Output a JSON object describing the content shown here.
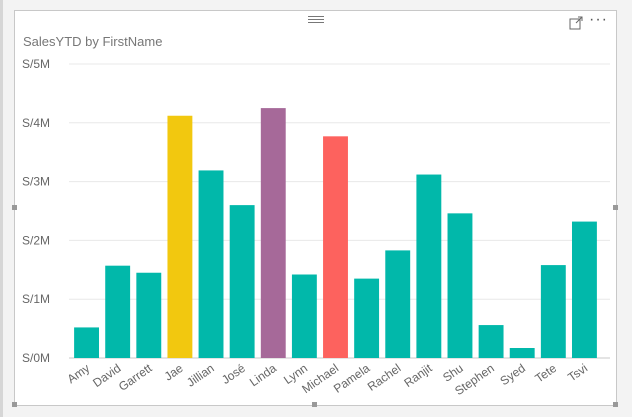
{
  "visual": {
    "title": "SalesYTD by FirstName",
    "focus_icon": "focus-mode-icon",
    "more_icon": "more-options-icon",
    "more_glyph": "···",
    "drag_icon": "drag-handle-icon"
  },
  "colors": {
    "default": "#01B8AA",
    "highlight_yellow": "#F2C80F",
    "highlight_purple": "#A66999",
    "highlight_red": "#FD625E",
    "grid": "#e8e8e8",
    "axis": "#c8c8c8"
  },
  "chart_data": {
    "type": "bar",
    "title": "SalesYTD by FirstName",
    "xlabel": "",
    "ylabel": "",
    "ylim": [
      0,
      5000000
    ],
    "y_ticks": [
      {
        "value": 0,
        "label": "S/0M"
      },
      {
        "value": 1000000,
        "label": "S/1M"
      },
      {
        "value": 2000000,
        "label": "S/2M"
      },
      {
        "value": 3000000,
        "label": "S/3M"
      },
      {
        "value": 4000000,
        "label": "S/4M"
      },
      {
        "value": 5000000,
        "label": "S/5M"
      }
    ],
    "grid": true,
    "legend": "none",
    "categories": [
      "Amy",
      "David",
      "Garrett",
      "Jae",
      "Jillian",
      "José",
      "Linda",
      "Lynn",
      "Michael",
      "Pamela",
      "Rachel",
      "Ranjit",
      "Shu",
      "Stephen",
      "Syed",
      "Tete",
      "Tsvi"
    ],
    "values": [
      520000,
      1570000,
      1450000,
      4120000,
      3190000,
      2600000,
      4250000,
      1420000,
      3770000,
      1350000,
      1830000,
      3120000,
      2460000,
      560000,
      170000,
      1580000,
      2320000
    ],
    "bar_colors": [
      "#01B8AA",
      "#01B8AA",
      "#01B8AA",
      "#F2C80F",
      "#01B8AA",
      "#01B8AA",
      "#A66999",
      "#01B8AA",
      "#FD625E",
      "#01B8AA",
      "#01B8AA",
      "#01B8AA",
      "#01B8AA",
      "#01B8AA",
      "#01B8AA",
      "#01B8AA",
      "#01B8AA"
    ]
  }
}
